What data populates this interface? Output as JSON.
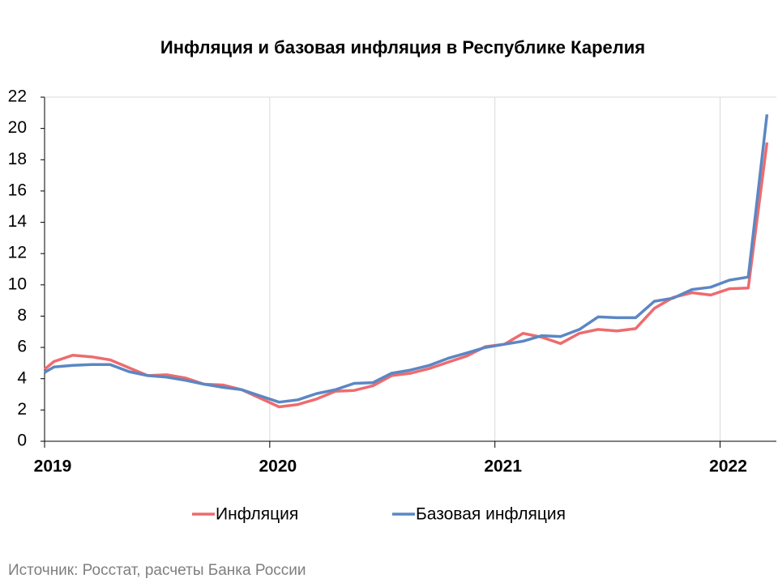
{
  "chart_data": {
    "type": "line",
    "title": "Инфляция и базовая инфляция в Республике Карелия",
    "source": "Источник: Росстат, расчеты Банка России",
    "x": [
      0,
      0.5,
      1.5,
      2.5,
      3.5,
      4.5,
      5.5,
      6.5,
      7.5,
      8.5,
      9.5,
      10.5,
      11.5,
      12.5,
      13.5,
      14.5,
      15.5,
      16.5,
      17.5,
      18.5,
      19.5,
      20.5,
      21.5,
      22.5,
      23.5,
      24.5,
      25.5,
      26.5,
      27.5,
      28.5,
      29.5,
      30.5,
      31.5,
      32.5,
      33.5,
      34.5,
      35.5,
      36.5,
      37.5,
      38.5
    ],
    "series": [
      {
        "name": "Инфляция",
        "color": "#ee6b6e",
        "values": [
          4.6,
          5.1,
          5.5,
          5.4,
          5.2,
          4.7,
          4.2,
          4.25,
          4.05,
          3.65,
          3.6,
          3.3,
          2.75,
          2.2,
          2.35,
          2.7,
          3.2,
          3.25,
          3.55,
          4.2,
          4.35,
          4.65,
          5.05,
          5.45,
          6.05,
          6.2,
          6.9,
          6.65,
          6.25,
          6.9,
          7.15,
          7.05,
          7.2,
          8.5,
          9.2,
          9.5,
          9.35,
          9.75,
          9.8,
          19.1
        ]
      },
      {
        "name": "Базовая инфляция",
        "color": "#5b87c4",
        "values": [
          4.4,
          4.75,
          4.85,
          4.9,
          4.9,
          4.45,
          4.2,
          4.1,
          3.9,
          3.65,
          3.45,
          3.3,
          2.9,
          2.5,
          2.65,
          3.05,
          3.3,
          3.7,
          3.75,
          4.35,
          4.55,
          4.85,
          5.3,
          5.65,
          6.0,
          6.2,
          6.4,
          6.75,
          6.7,
          7.15,
          7.95,
          7.9,
          7.9,
          8.95,
          9.15,
          9.7,
          9.85,
          10.3,
          10.5,
          20.9
        ]
      }
    ],
    "xlim": [
      0,
      39
    ],
    "xticks": [
      {
        "value": 0,
        "label": "2019"
      },
      {
        "value": 12,
        "label": "2020"
      },
      {
        "value": 24,
        "label": "2021"
      },
      {
        "value": 36,
        "label": "2022"
      }
    ],
    "ylim": [
      0,
      22
    ],
    "yticks": [
      0,
      2,
      4,
      6,
      8,
      10,
      12,
      14,
      16,
      18,
      20,
      22
    ],
    "grid": true
  }
}
